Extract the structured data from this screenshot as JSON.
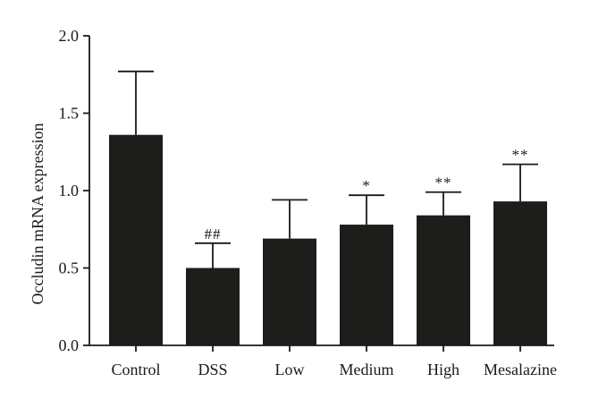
{
  "chart_data": {
    "type": "bar",
    "title": "",
    "xlabel": "",
    "ylabel": "Occludin mRNA expression",
    "ylim": [
      0,
      2.0
    ],
    "yticks": [
      "0.0",
      "0.5",
      "1.0",
      "1.5",
      "2.0"
    ],
    "grid": false,
    "categories": [
      "Control",
      "DSS",
      "Low",
      "Medium",
      "High",
      "Mesalazine"
    ],
    "values": [
      1.36,
      0.5,
      0.69,
      0.78,
      0.84,
      0.93
    ],
    "error_upper": [
      1.77,
      0.66,
      0.94,
      0.97,
      0.99,
      1.17
    ],
    "annotations": [
      "",
      "##",
      "",
      "*",
      "**",
      "**"
    ],
    "bar_color": "#1d1d1b"
  }
}
